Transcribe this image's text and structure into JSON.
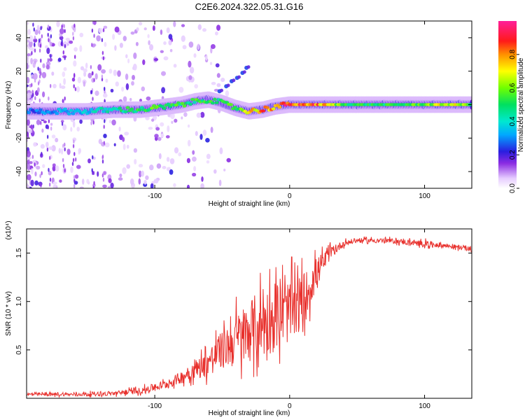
{
  "title": "C2E6.2024.322.05.31.G16",
  "chart_data": [
    {
      "type": "heatmap",
      "xlabel": "Height of straight line (km)",
      "ylabel": "Frequency (Hz)",
      "xlim": [
        -195,
        135
      ],
      "ylim": [
        -50,
        50
      ],
      "xticks": [
        -100,
        0,
        100
      ],
      "xtick_labels": [
        "-100",
        "0",
        "100"
      ],
      "yticks": [
        -40,
        -20,
        0,
        20,
        40
      ],
      "ytick_labels": [
        "-40",
        "-20",
        "0",
        "20",
        "40"
      ],
      "colorbar": {
        "label": "Normalized spectral amplitude",
        "range": [
          0,
          1
        ],
        "ticks": [
          0,
          0.2,
          0.4,
          0.6,
          0.8
        ],
        "tick_labels": [
          "0.0",
          "0.2",
          "0.4",
          "0.6",
          "0.8"
        ]
      },
      "ridge": {
        "x": [
          -190,
          -170,
          -150,
          -130,
          -110,
          -100,
          -90,
          -80,
          -70,
          -60,
          -50,
          -40,
          -30,
          -20,
          -10,
          0,
          20,
          40,
          60,
          80,
          100,
          120,
          135
        ],
        "freq": [
          -4,
          -4,
          -4,
          -3,
          -3,
          -2,
          -1,
          0,
          2,
          3,
          1,
          -2,
          -4,
          -3,
          -1,
          0,
          0,
          0,
          0,
          0,
          0,
          0,
          0
        ],
        "amplitude": [
          0.3,
          0.35,
          0.4,
          0.5,
          0.55,
          0.6,
          0.6,
          0.55,
          0.55,
          0.6,
          0.55,
          0.6,
          0.75,
          0.85,
          0.9,
          0.95,
          0.9,
          0.6,
          0.55,
          0.55,
          0.65,
          0.75,
          0.6
        ]
      },
      "branch": {
        "x": [
          -52,
          -47,
          -43,
          -39,
          -35,
          -32
        ],
        "freq": [
          8,
          11,
          14,
          16,
          19,
          22
        ]
      }
    },
    {
      "type": "line",
      "xlabel": "Height of straight line (km)",
      "ylabel": "SNR (10 * v/v)",
      "exponent_label": "(x10⁴)",
      "xlim": [
        -195,
        135
      ],
      "ylim": [
        0,
        1.75
      ],
      "xticks": [
        -100,
        0,
        100
      ],
      "xtick_labels": [
        "-100",
        "0",
        "100"
      ],
      "yticks": [
        0.5,
        1.0,
        1.5
      ],
      "ytick_labels": [
        "0.5",
        "1.0",
        "1.5"
      ],
      "color": "#e8302c",
      "envelope": {
        "x": [
          -195,
          -160,
          -130,
          -110,
          -90,
          -80,
          -70,
          -60,
          -50,
          -40,
          -30,
          -20,
          -10,
          0,
          10,
          20,
          30,
          40,
          50,
          70,
          100,
          120,
          135
        ],
        "mean": [
          0.04,
          0.04,
          0.05,
          0.08,
          0.15,
          0.22,
          0.3,
          0.38,
          0.5,
          0.6,
          0.7,
          0.78,
          0.85,
          0.9,
          1.0,
          1.3,
          1.5,
          1.6,
          1.63,
          1.63,
          1.6,
          1.57,
          1.54
        ],
        "spread": [
          0.02,
          0.02,
          0.03,
          0.04,
          0.06,
          0.08,
          0.12,
          0.18,
          0.25,
          0.35,
          0.4,
          0.45,
          0.45,
          0.4,
          0.35,
          0.2,
          0.08,
          0.04,
          0.03,
          0.03,
          0.04,
          0.03,
          0.03
        ]
      }
    }
  ]
}
